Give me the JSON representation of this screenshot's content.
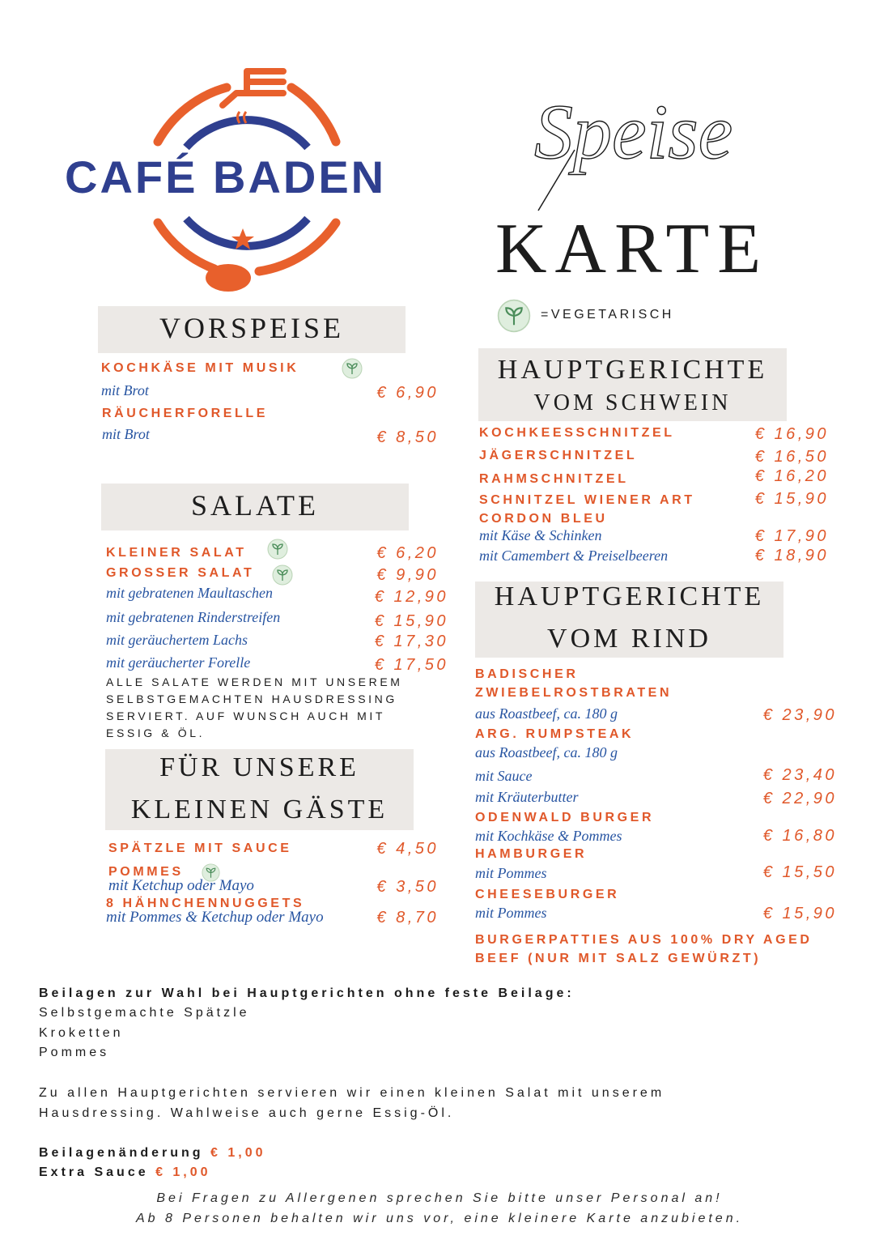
{
  "brand": {
    "logo_text": "CAFÉ BADEN",
    "colors": {
      "navy": "#2f3f8f",
      "orange": "#e8602c"
    }
  },
  "title": {
    "script": "Speise",
    "main": "KARTE"
  },
  "legend": {
    "icon": "vegetarian-leaf-icon",
    "label": "=VEGETARISCH"
  },
  "colors": {
    "item_name": "#e0582a",
    "description": "#2855a2",
    "box": "#ece9e6"
  },
  "vorspeise": {
    "title": "VORSPEISE",
    "items": [
      {
        "name": "KOCHKÄSE MIT MUSIK",
        "vegetarian": true,
        "desc": "mit Brot",
        "price": "€ 6,90"
      },
      {
        "name": "RÄUCHERFORELLE",
        "desc": "mit Brot",
        "price": "€ 8,50"
      }
    ]
  },
  "salate": {
    "title": "SALATE",
    "items": [
      {
        "name": "KLEINER SALAT",
        "vegetarian": true,
        "price": "€ 6,20"
      },
      {
        "name": "GROSSER SALAT",
        "vegetarian": true,
        "price": "€ 9,90"
      },
      {
        "desc": "mit gebratenen Maultaschen",
        "price": "€ 12,90"
      },
      {
        "desc": "mit gebratenen Rinderstreifen",
        "price": "€ 15,90"
      },
      {
        "desc": "mit geräuchertem Lachs",
        "price": "€ 17,30"
      },
      {
        "desc": "mit geräucherter Forelle",
        "price": "€ 17,50"
      }
    ],
    "note": [
      "ALLE SALATE WERDEN MIT UNSEREM",
      "SELBSTGEMACHTEN HAUSDRESSING",
      "SERVIERT. AUF WUNSCH AUCH MIT",
      "ESSIG & ÖL."
    ]
  },
  "kinder": {
    "title": [
      "FÜR UNSERE",
      "KLEINEN GÄSTE"
    ],
    "items": [
      {
        "name": "SPÄTZLE MIT SAUCE",
        "price": "€ 4,50"
      },
      {
        "name": "POMMES",
        "vegetarian": true,
        "desc": "mit Ketchup oder Mayo",
        "price": "€ 3,50"
      },
      {
        "name": "8 HÄHNCHENNUGGETS",
        "desc": "mit Pommes & Ketchup oder Mayo",
        "price": "€ 8,70"
      }
    ]
  },
  "schwein": {
    "title": [
      "HAUPTGERICHTE",
      "VOM SCHWEIN"
    ],
    "items": [
      {
        "name": "KOCHKEESSCHNITZEL",
        "price": "€ 16,90"
      },
      {
        "name": "JÄGERSCHNITZEL",
        "price": "€ 16,50"
      },
      {
        "name": "RAHMSCHNITZEL",
        "price": "€ 16,20"
      },
      {
        "name": "SCHNITZEL WIENER ART",
        "price": "€ 15,90"
      },
      {
        "name": "CORDON BLEU"
      },
      {
        "desc": "mit Käse & Schinken",
        "price": "€ 17,90"
      },
      {
        "desc": "mit Camembert & Preiselbeeren",
        "price": "€ 18,90"
      }
    ]
  },
  "rind": {
    "title": [
      "HAUPTGERICHTE",
      "VOM RIND"
    ],
    "items": [
      {
        "name": [
          "BADISCHER",
          "ZWIEBELROSTBRATEN"
        ],
        "desc": "aus Roastbeef, ca. 180 g",
        "price": "€ 23,90"
      },
      {
        "name": "ARG. RUMPSTEAK",
        "desc": "aus Roastbeef, ca. 180 g"
      },
      {
        "desc": "mit Sauce",
        "price": "€ 23,40"
      },
      {
        "desc": "mit Kräuterbutter",
        "price": "€ 22,90"
      },
      {
        "name": "ODENWALD BURGER",
        "desc": "mit Kochkäse & Pommes",
        "price": "€ 16,80"
      },
      {
        "name": "HAMBURGER",
        "desc": "mit Pommes",
        "price": "€ 15,50"
      },
      {
        "name": "CHEESEBURGER",
        "desc": "mit Pommes",
        "price": "€ 15,90"
      }
    ],
    "note": [
      "BURGERPATTIES AUS 100% DRY AGED",
      "BEEF (NUR MIT SALZ GEWÜRZT)"
    ]
  },
  "footer": {
    "beilagen_title": "Beilagen zur Wahl bei Hauptgerichten ohne feste Beilage:",
    "beilagen": [
      "Selbstgemachte Spätzle",
      "Kroketten",
      "Pommes"
    ],
    "salad_note": [
      "Zu allen Hauptgerichten servieren wir einen kleinen Salat mit unserem",
      "Hausdressing. Wahlweise auch gerne Essig-Öl."
    ],
    "extras": [
      {
        "label": "Beilagenänderung",
        "price": "€ 1,00"
      },
      {
        "label": "Extra Sauce",
        "price": "€ 1,00"
      }
    ],
    "disclaimer": [
      "Bei Fragen zu Allergenen sprechen Sie bitte unser Personal an!",
      "Ab 8 Personen behalten wir uns vor, eine kleinere Karte anzubieten."
    ]
  }
}
